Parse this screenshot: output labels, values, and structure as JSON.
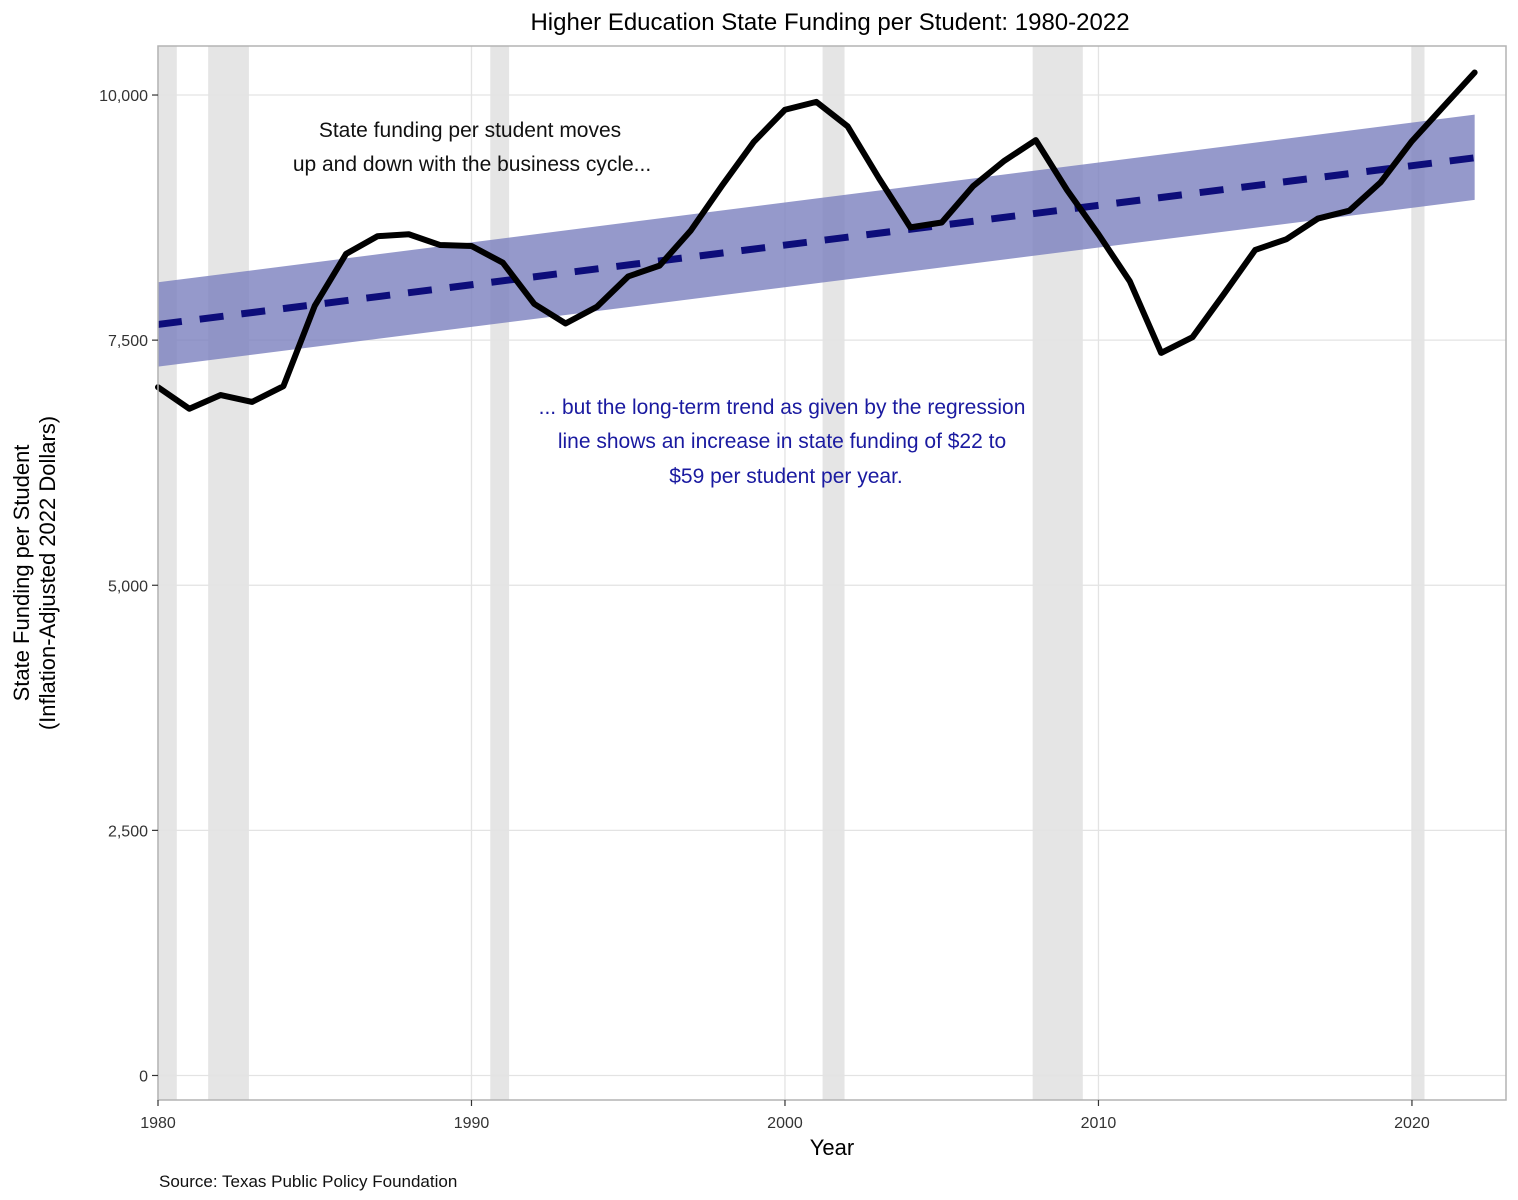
{
  "chart_data": {
    "type": "line",
    "title": "Higher Education State Funding per Student: 1980-2022",
    "xlabel": "Year",
    "ylabel_lines": [
      "State Funding per Student",
      "(Inflation-Adjusted 2022 Dollars)"
    ],
    "source": "Source: Texas Public Policy Foundation",
    "xlim": [
      1980,
      2023
    ],
    "ylim": [
      -250,
      10500
    ],
    "x_ticks": [
      1980,
      1990,
      2000,
      2010,
      2020
    ],
    "x_tick_labels": [
      "1980",
      "1990",
      "2000",
      "2010",
      "2020"
    ],
    "y_ticks": [
      0,
      2500,
      5000,
      7500,
      10000
    ],
    "y_tick_labels": [
      "0",
      "2,500",
      "5,000",
      "7,500",
      "10,000"
    ],
    "grid": true,
    "recessions": [
      {
        "start": 1980.0,
        "end": 1980.6
      },
      {
        "start": 1981.6,
        "end": 1982.9
      },
      {
        "start": 1990.6,
        "end": 1991.2
      },
      {
        "start": 2001.2,
        "end": 2001.9
      },
      {
        "start": 2007.9,
        "end": 2009.5
      },
      {
        "start": 2020.0,
        "end": 2020.4
      }
    ],
    "series": [
      {
        "style": "solid",
        "color": "#000000",
        "x": [
          1980,
          1981,
          1982,
          1983,
          1984,
          1985,
          1986,
          1987,
          1988,
          1989,
          1990,
          1991,
          1992,
          1993,
          1994,
          1995,
          1996,
          1997,
          1998,
          1999,
          2000,
          2001,
          2002,
          2003,
          2004,
          2005,
          2006,
          2007,
          2008,
          2009,
          2010,
          2011,
          2012,
          2013,
          2014,
          2015,
          2016,
          2017,
          2018,
          2019,
          2020,
          2021,
          2022
        ],
        "y": [
          7020,
          6800,
          6940,
          6870,
          7030,
          7850,
          8380,
          8560,
          8580,
          8470,
          8460,
          8290,
          7870,
          7670,
          7840,
          8150,
          8260,
          8620,
          9080,
          9520,
          9850,
          9930,
          9680,
          9150,
          8650,
          8700,
          9070,
          9330,
          9540,
          9030,
          8580,
          8100,
          7370,
          7530,
          7970,
          8420,
          8530,
          8740,
          8820,
          9110,
          9530,
          9880,
          10230
        ]
      },
      {
        "style": "dashed",
        "color": "#0d0d7a",
        "band_color": "#7b7fbe",
        "x": [
          1980,
          2022
        ],
        "y": [
          7660,
          9360
        ],
        "band_lower": [
          7230,
          8930
        ],
        "band_upper": [
          8090,
          9800
        ]
      }
    ],
    "annotations": [
      {
        "lines": [
          "State funding per student moves",
          "up and down with the business cycle..."
        ],
        "color": "#111111"
      },
      {
        "lines": [
          "... but the long-term trend as given by the regression",
          "line shows an increase in state funding of $22 to",
          "$59 per student per year."
        ],
        "color": "#1a1aa0"
      }
    ]
  }
}
